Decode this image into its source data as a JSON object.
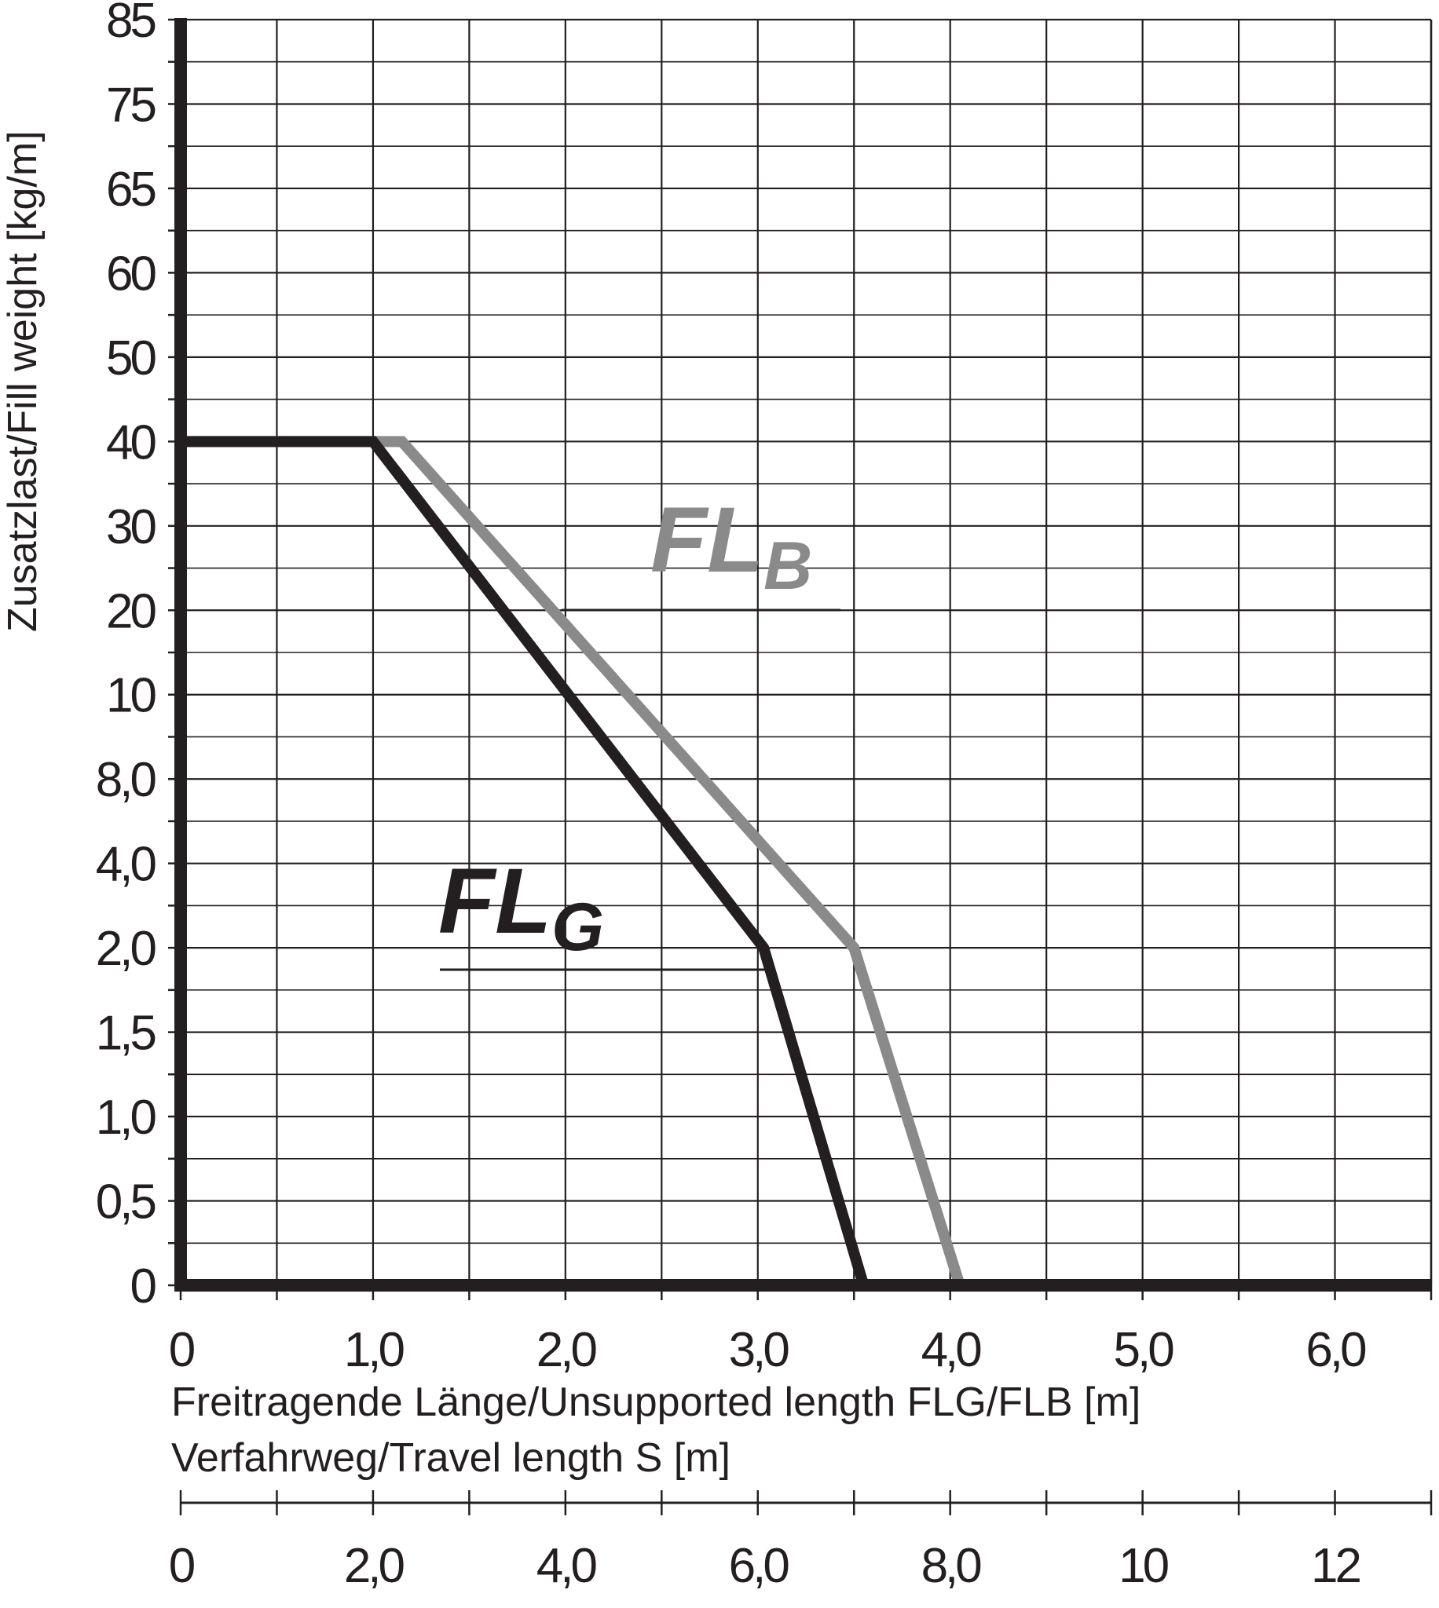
{
  "colors": {
    "ink": "#231f20",
    "grid": "#231f20",
    "flb": "#8a8a8a",
    "flg": "#231f20"
  },
  "chart_data": {
    "type": "line",
    "grid": true,
    "ylabel": "Zusatzlast/Fill weight [kg/m]",
    "xlabel": "Freitragende Länge/Unsupported length FLG/FLB [m]",
    "x2label": "Verfahrweg/Travel length S [m]",
    "y_ticks": [
      "0",
      "0,5",
      "1,0",
      "1,5",
      "2,0",
      "4,0",
      "8,0",
      "10",
      "20",
      "30",
      "40",
      "50",
      "60",
      "65",
      "75",
      "85"
    ],
    "x_ticks": [
      "0",
      "1,0",
      "2,0",
      "3,0",
      "4,0",
      "5,0",
      "6,0"
    ],
    "x_tick_values": [
      0,
      1,
      2,
      3,
      4,
      5,
      6
    ],
    "x2_ticks": [
      "0",
      "2,0",
      "4,0",
      "6,0",
      "8,0",
      "10",
      "12"
    ],
    "x2_tick_values": [
      0,
      2,
      4,
      6,
      8,
      10,
      12
    ],
    "xlim": [
      0,
      6.5
    ],
    "series": [
      {
        "name": "FLB",
        "label_main": "FL",
        "label_sub": "B",
        "points": [
          [
            0,
            "40"
          ],
          [
            1.15,
            "40"
          ],
          [
            3.5,
            "2,0"
          ],
          [
            4.05,
            "0"
          ]
        ]
      },
      {
        "name": "FLG",
        "label_main": "FL",
        "label_sub": "G",
        "points": [
          [
            0,
            "40"
          ],
          [
            1.0,
            "40"
          ],
          [
            3.03,
            "2,0"
          ],
          [
            3.55,
            "0"
          ]
        ]
      }
    ]
  }
}
